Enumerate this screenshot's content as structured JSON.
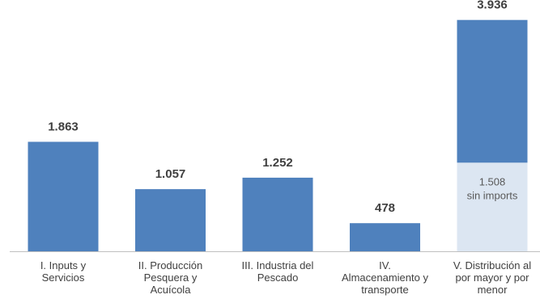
{
  "chart_data": {
    "type": "bar",
    "categories": [
      "I. Inputs y\nServicios",
      "II. Producción\nPesquera y\nAcuícola",
      "III. Industria del\nPescado",
      "IV.\nAlmacenamiento y\ntransporte",
      "V. Distribución al\npor mayor y por\nmenor"
    ],
    "values": [
      1863,
      1057,
      1252,
      478,
      3936
    ],
    "data_labels": [
      "1.863",
      "1.057",
      "1.252",
      "478",
      "3.936"
    ],
    "sub_bar": {
      "category_index": 4,
      "value": 1508,
      "label_value": "1.508",
      "label_text": "sin imports"
    },
    "colors": {
      "bar": "#4f81bd",
      "sub_bar": "#dce6f2",
      "axis": "#bfbfbf",
      "value_label": "#404040",
      "sub_label": "#595959"
    },
    "ylim": [
      0,
      4000
    ],
    "grid": false,
    "legend": "none",
    "title": "",
    "xlabel": "",
    "ylabel": ""
  }
}
